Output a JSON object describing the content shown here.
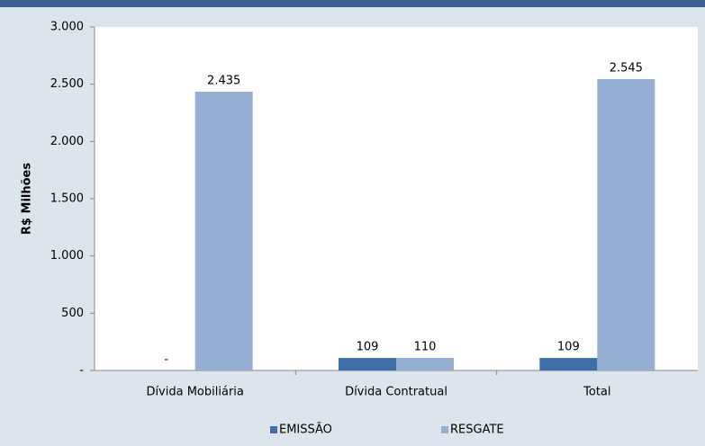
{
  "chart_data": {
    "type": "bar",
    "y_label": "R$ Milhões",
    "categories": [
      "Dívida Mobiliária",
      "Dívida Contratual",
      "Total"
    ],
    "series": [
      {
        "name": "EMISSÃO",
        "color": "#3e6ea6",
        "values": [
          0,
          109,
          109
        ],
        "value_labels": [
          "-",
          "109",
          "109"
        ]
      },
      {
        "name": "RESGATE",
        "color": "#95aed3",
        "values": [
          2435,
          110,
          2545
        ],
        "value_labels": [
          "2.435",
          "110",
          "2.545"
        ]
      }
    ],
    "ylim": [
      0,
      3000
    ],
    "yticks": [
      {
        "value": 0,
        "label": "-"
      },
      500,
      {
        "value": 1000,
        "label": "1.000"
      },
      {
        "value": 1500,
        "label": "1.500"
      },
      {
        "value": 2000,
        "label": "2.000"
      },
      {
        "value": 2500,
        "label": "2.500"
      },
      {
        "value": 3000,
        "label": "3.000"
      }
    ],
    "legend": "bottom"
  }
}
